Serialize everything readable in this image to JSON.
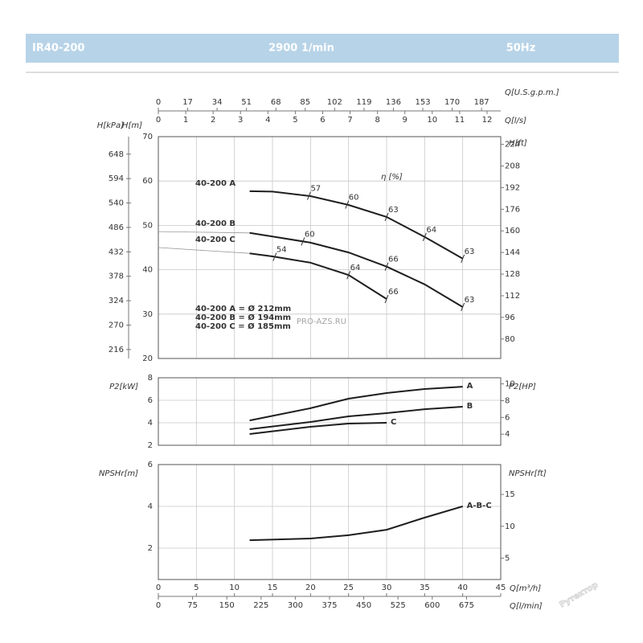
{
  "header": {
    "model": "IR40-200",
    "speed": "2900 1/min",
    "frequency": "50Hz"
  },
  "watermarks": [
    "PRO-AZS.RU",
    "Рутектор"
  ],
  "chart_data": [
    {
      "type": "line",
      "xlim": [
        0,
        45
      ],
      "top_axes": [
        {
          "label": "Q[U.S.g.p.m.]",
          "lim": [
            0,
            198.1
          ],
          "ticks": [
            0,
            17,
            34,
            51,
            68,
            85,
            102,
            119,
            136,
            153,
            170,
            187
          ]
        },
        {
          "label": "Q[l/s]",
          "lim": [
            0,
            12.5
          ],
          "ticks": [
            0,
            1,
            2,
            3,
            4,
            5,
            6,
            7,
            8,
            9,
            10,
            11,
            12
          ]
        }
      ],
      "ylabel": "H[m]",
      "ylim": [
        20,
        70
      ],
      "yticks": [
        20,
        30,
        40,
        50,
        60,
        70
      ],
      "left_axes": [
        {
          "label": "H[kPa]",
          "lim": [
            196.2,
            686.7
          ],
          "ticks": [
            216,
            270,
            324,
            378,
            432,
            486,
            540,
            594,
            648
          ]
        }
      ],
      "y2label": "H[ft]",
      "y2lim": [
        65.6,
        229.7
      ],
      "y2ticks": [
        80,
        96,
        112,
        128,
        144,
        160,
        176,
        192,
        208,
        224
      ],
      "efficiency_label": "η [%]",
      "series": [
        {
          "name": "40-200 A",
          "color": "#1e1e1e",
          "x": [
            12,
            15,
            20,
            25,
            30,
            35,
            40
          ],
          "values": [
            57.7,
            57.6,
            56.6,
            54.6,
            51.9,
            47.4,
            42.5
          ],
          "efficiency": {
            "x": [
              19.8,
              24.8,
              30,
              35,
              40
            ],
            "values": [
              57,
              60,
              63,
              64,
              63
            ]
          }
        },
        {
          "name": "40-200 B",
          "color": "#1e1e1e",
          "x": [
            12,
            15,
            20,
            25,
            30,
            35,
            40
          ],
          "values": [
            48.3,
            47.5,
            46.1,
            43.9,
            40.7,
            36.7,
            31.6
          ],
          "extension": {
            "x": [
              0,
              12
            ],
            "values": [
              48.6,
              48.3
            ]
          },
          "efficiency": {
            "x": [
              19,
              30,
              40
            ],
            "values": [
              60,
              66,
              63
            ]
          }
        },
        {
          "name": "40-200 C",
          "color": "#1e1e1e",
          "x": [
            12,
            15,
            20,
            25,
            30
          ],
          "values": [
            43.7,
            43.0,
            41.6,
            38.8,
            33.4
          ],
          "extension": {
            "x": [
              0,
              12
            ],
            "values": [
              45.0,
              43.7
            ]
          },
          "efficiency": {
            "x": [
              15.3,
              25,
              30
            ],
            "values": [
              54,
              64,
              66
            ]
          }
        }
      ],
      "annotations": [
        "40-200 A = Ø 212mm",
        "40-200 B = Ø 194mm",
        "40-200 C = Ø 185mm"
      ]
    },
    {
      "type": "line",
      "xlim": [
        0,
        45
      ],
      "ylabel": "P2[kW]",
      "ylim": [
        2,
        8
      ],
      "yticks": [
        2,
        4,
        6,
        8
      ],
      "y2label": "P2[HP]",
      "y2lim": [
        2.68,
        10.73
      ],
      "y2ticks": [
        4,
        6,
        8,
        10
      ],
      "series": [
        {
          "name": "A",
          "color": "#1e1e1e",
          "x": [
            12,
            20,
            25,
            30,
            35,
            40
          ],
          "values": [
            4.21,
            5.29,
            6.14,
            6.64,
            7.0,
            7.21
          ]
        },
        {
          "name": "B",
          "color": "#1e1e1e",
          "x": [
            12,
            20,
            25,
            30,
            35,
            40
          ],
          "values": [
            3.43,
            4.07,
            4.57,
            4.86,
            5.21,
            5.43
          ]
        },
        {
          "name": "C",
          "color": "#1e1e1e",
          "x": [
            12,
            20,
            25,
            30
          ],
          "values": [
            3.0,
            3.64,
            3.93,
            4.0
          ]
        }
      ]
    },
    {
      "type": "line",
      "xlabel": "Q[m³/h]",
      "xlim": [
        0,
        45
      ],
      "xticks": [
        0,
        5,
        10,
        15,
        20,
        25,
        30,
        35,
        40,
        45
      ],
      "bottom_axes": [
        {
          "label": "Q[l/min]",
          "lim": [
            0,
            750
          ],
          "ticks": [
            0,
            75,
            150,
            225,
            300,
            375,
            450,
            525,
            600,
            675
          ]
        }
      ],
      "ylabel": "NPSHr[m]",
      "ylim": [
        0.5,
        6
      ],
      "yticks": [
        2,
        4,
        6
      ],
      "y2label": "NPSHr[ft]",
      "y2lim": [
        1.64,
        19.69
      ],
      "y2ticks": [
        5,
        10,
        15
      ],
      "series": [
        {
          "name": "A-B-C",
          "color": "#1e1e1e",
          "x": [
            12,
            20,
            25,
            30,
            35,
            40
          ],
          "values": [
            2.38,
            2.46,
            2.62,
            2.88,
            3.46,
            4.0
          ]
        }
      ]
    }
  ]
}
